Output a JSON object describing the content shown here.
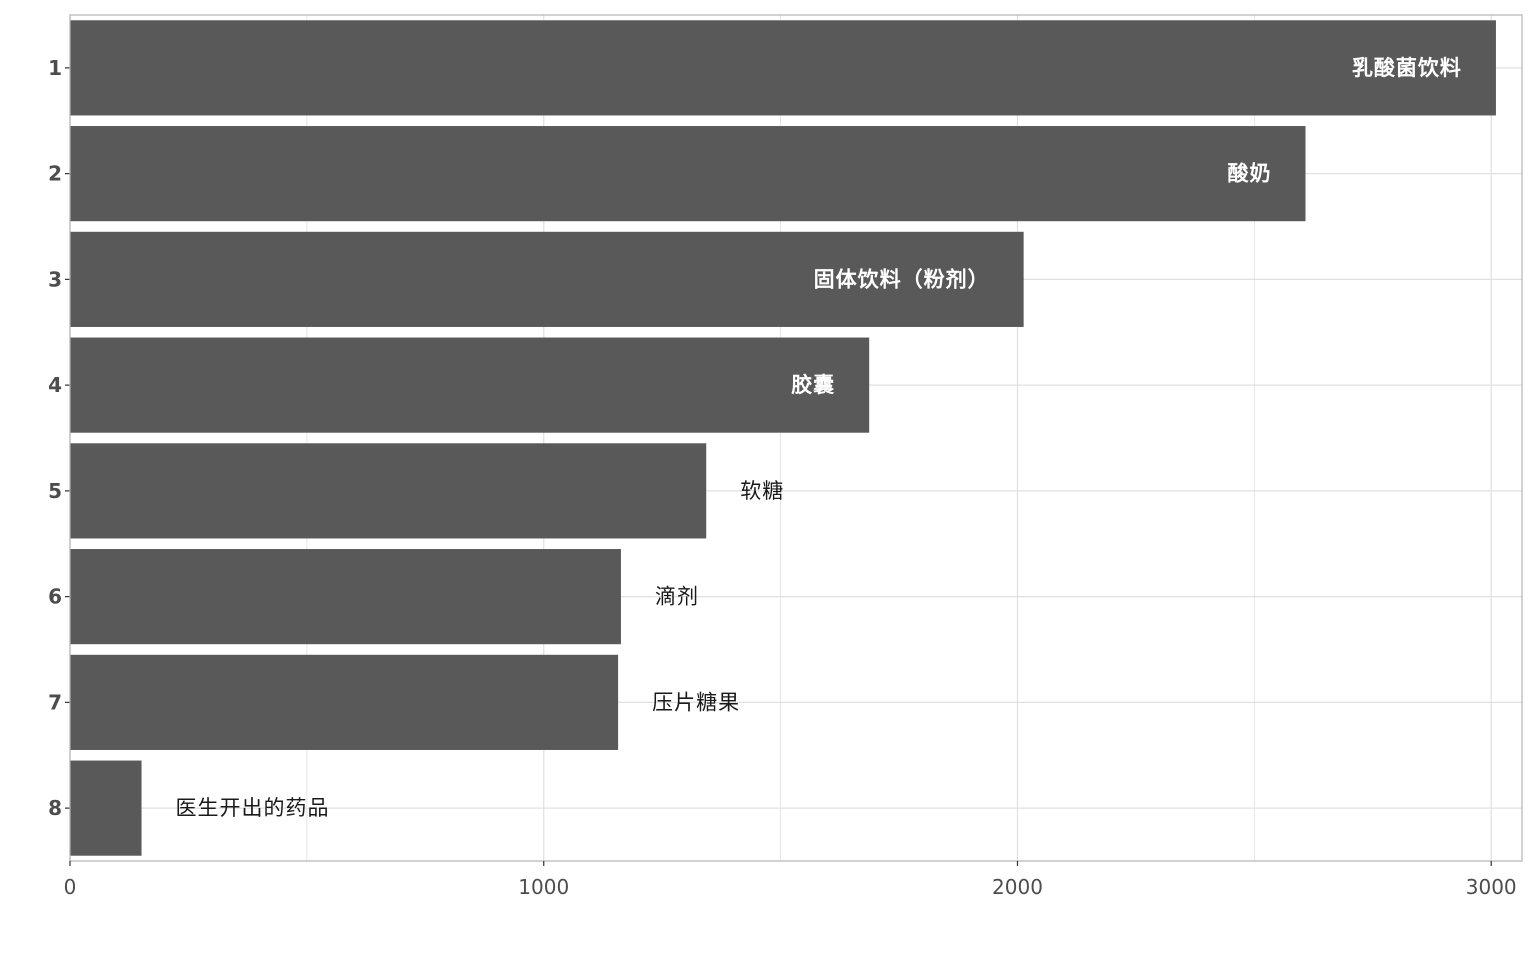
{
  "chart_data": {
    "type": "bar",
    "orientation": "horizontal",
    "categories": [
      "1",
      "2",
      "3",
      "4",
      "5",
      "6",
      "7",
      "8"
    ],
    "values": [
      3010,
      2608,
      2013,
      1687,
      1343,
      1163,
      1157,
      151
    ],
    "bar_labels": [
      "乳酸菌饮料",
      "酸奶",
      "固体饮料（粉剂）",
      "胶囊",
      "软糖",
      "滴剂",
      "压片糖果",
      "医生开出的药品"
    ],
    "label_inside": [
      true,
      true,
      true,
      true,
      false,
      false,
      false,
      false
    ],
    "xlim": [
      0,
      3065
    ],
    "x_ticks": [
      0,
      1000,
      2000,
      3000
    ],
    "x_tick_labels": [
      "0",
      "1000",
      "2000",
      "3000"
    ],
    "grid": true,
    "bar_color": "#595959",
    "grid_color": "#e0e0e0",
    "border_color": "#b3b3b3"
  }
}
